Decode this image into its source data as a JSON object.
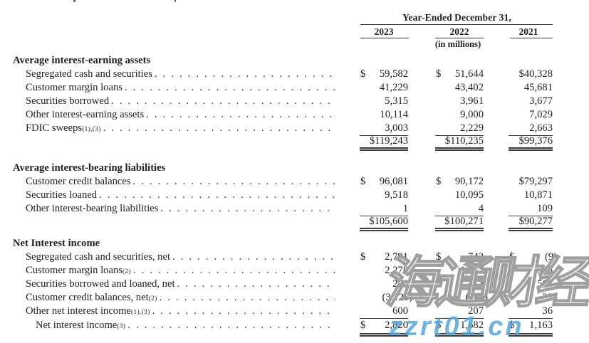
{
  "header": {
    "title": "Year-Ended December 31,",
    "year_2023": "2023",
    "year_2022": "2022",
    "year_2021": "2021",
    "units": "(in millions)"
  },
  "sections": [
    {
      "title": "Average interest-earning assets",
      "rows": [
        {
          "label": "Segregated cash and securities",
          "sup": "",
          "p1": "$",
          "v1": "59,582",
          "p2": "$",
          "v2": "51,644",
          "p3": "",
          "v3": "$40,328"
        },
        {
          "label": "Customer margin loans",
          "sup": "",
          "p1": "",
          "v1": "41,229",
          "p2": "",
          "v2": "43,402",
          "p3": "",
          "v3": "45,681"
        },
        {
          "label": "Securities borrowed",
          "sup": "",
          "p1": "",
          "v1": "5,315",
          "p2": "",
          "v2": "3,961",
          "p3": "",
          "v3": "3,677"
        },
        {
          "label": "Other interest-earning assets",
          "sup": "",
          "p1": "",
          "v1": "10,114",
          "p2": "",
          "v2": "9,000",
          "p3": "",
          "v3": "7,029"
        },
        {
          "label": "FDIC sweeps",
          "sup": "(1),(3)",
          "p1": "",
          "v1": "3,003",
          "p2": "",
          "v2": "2,229",
          "p3": "",
          "v3": "2,663"
        }
      ],
      "total": {
        "label": "",
        "sup": "",
        "p1": "",
        "v1": "$119,243",
        "p2": "",
        "v2": "$110,235",
        "p3": "",
        "v3": "$99,376"
      }
    },
    {
      "title": "Average interest-bearing liabilities",
      "rows": [
        {
          "label": "Customer credit balances",
          "sup": "",
          "p1": "$",
          "v1": "96,081",
          "p2": "$",
          "v2": "90,172",
          "p3": "",
          "v3": "$79,297"
        },
        {
          "label": "Securities loaned",
          "sup": "",
          "p1": "",
          "v1": "9,518",
          "p2": "",
          "v2": "10,095",
          "p3": "",
          "v3": "10,871"
        },
        {
          "label": "Other interest-bearing liabilities",
          "sup": "",
          "p1": "",
          "v1": "1",
          "p2": "",
          "v2": "4",
          "p3": "",
          "v3": "109"
        }
      ],
      "total": {
        "label": "",
        "sup": "",
        "p1": "",
        "v1": "$105,600",
        "p2": "",
        "v2": "$100,271",
        "p3": "",
        "v3": "$90,277"
      }
    },
    {
      "title": "Net Interest income",
      "rows": [
        {
          "label": "Segregated cash and securities, net",
          "sup": "",
          "p1": "$",
          "v1": "2,791",
          "p2": "$",
          "v2": "742",
          "p3": "$",
          "v3": "(9)"
        },
        {
          "label": "Customer margin loans",
          "sup": "(2)",
          "p1": "",
          "v1": "2,278",
          "p2": "",
          "v2": "1,083",
          "p3": "",
          "v3": "535"
        },
        {
          "label": "Securities borrowed and loaned, net",
          "sup": "",
          "p1": "",
          "v1": "276",
          "p2": "",
          "v2": "413",
          "p3": "",
          "v3": "568"
        },
        {
          "label": "Customer credit balances, net",
          "sup": "(2)",
          "p1": "",
          "v1": "(3,125)",
          "p2": "",
          "v2": "(763)",
          "p3": "",
          "v3": "33"
        },
        {
          "label": "Other net interest income",
          "sup": "(1),(3)",
          "p1": "",
          "v1": "600",
          "p2": "",
          "v2": "207",
          "p3": "",
          "v3": "36"
        }
      ],
      "total": {
        "label": "Net interest income",
        "sup": "(3)",
        "p1": "$",
        "v1": "2,820",
        "p2": "$",
        "v2": "1,682",
        "p3": "$",
        "v3": "1,163"
      }
    }
  ],
  "watermark": {
    "text_cn": "海通财经",
    "text_url": "zzrt01.cn",
    "url_color": "#56a8d9",
    "outline_color": "#9f9f9f"
  }
}
